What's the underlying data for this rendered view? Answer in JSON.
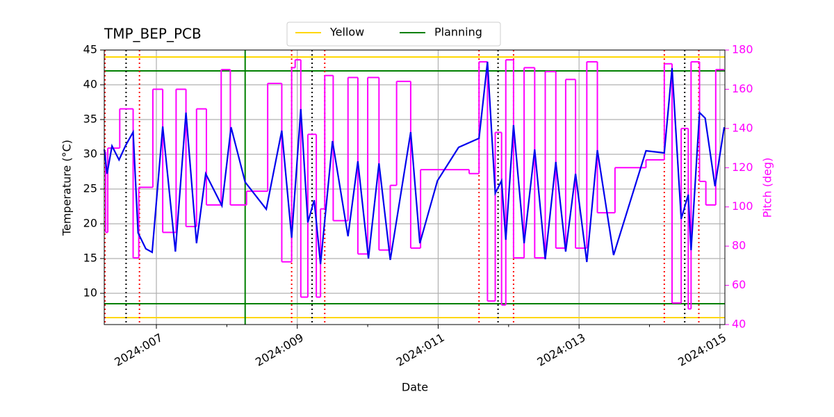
{
  "chart_data": {
    "type": "line",
    "title": "TMP_BEP_PCB",
    "xlabel": "Date",
    "ylabel": "Temperature (°C)",
    "y2label": "Pitch (deg)",
    "y2color": "#ff00ff",
    "xlim": [
      6.26,
      15.07
    ],
    "xticks": [
      {
        "value": 7,
        "label": "2024:007"
      },
      {
        "value": 9,
        "label": "2024:009"
      },
      {
        "value": 11,
        "label": "2024:011"
      },
      {
        "value": 13,
        "label": "2024:013"
      },
      {
        "value": 15,
        "label": "2024:015"
      }
    ],
    "xminorticks": [
      8,
      10,
      12,
      14
    ],
    "ylim": [
      5.5,
      45
    ],
    "yticks": [
      10,
      15,
      20,
      25,
      30,
      35,
      40,
      45
    ],
    "y2lim": [
      40,
      180
    ],
    "y2ticks": [
      40,
      60,
      80,
      100,
      120,
      140,
      160,
      180
    ],
    "grid": true,
    "legend": "upper center",
    "series": [
      {
        "color": "#0000ee",
        "x": [
          6.26,
          6.3,
          6.37,
          6.47,
          6.56,
          6.67,
          6.74,
          6.85,
          6.94,
          7.09,
          7.27,
          7.42,
          7.57,
          7.7,
          7.93,
          8.06,
          8.26,
          8.56,
          8.78,
          8.92,
          9.05,
          9.15,
          9.24,
          9.33,
          9.5,
          9.72,
          9.86,
          10.01,
          10.16,
          10.32,
          10.61,
          10.74,
          10.99,
          11.29,
          11.58,
          11.7,
          11.81,
          11.9,
          11.96,
          12.07,
          12.22,
          12.37,
          12.52,
          12.67,
          12.81,
          12.95,
          13.11,
          13.26,
          13.49,
          13.95,
          14.21,
          14.32,
          14.45,
          14.55,
          14.59,
          14.71,
          14.79,
          14.93,
          15.06
        ],
        "values": [
          30.7,
          27.2,
          31.2,
          29.2,
          31.2,
          33.2,
          18.7,
          16.4,
          15.9,
          34.0,
          16.0,
          36.0,
          17.2,
          27.2,
          22.6,
          33.9,
          26.0,
          22.1,
          33.4,
          18.0,
          36.5,
          20.2,
          23.4,
          14.2,
          31.9,
          18.2,
          29.0,
          15.0,
          28.7,
          14.8,
          33.2,
          17.2,
          26.2,
          31.0,
          32.3,
          43.3,
          24.4,
          26.2,
          17.7,
          34.2,
          17.2,
          30.7,
          14.9,
          28.9,
          16.0,
          27.2,
          14.5,
          30.6,
          15.5,
          30.5,
          30.2,
          42.4,
          20.7,
          24.2,
          16.2,
          36.0,
          35.2,
          25.4,
          33.9
        ]
      },
      {
        "color": "#ff00ff",
        "axis": "y2",
        "step": "post",
        "x": [
          6.26,
          6.28,
          6.31,
          6.48,
          6.67,
          6.75,
          6.95,
          7.09,
          7.28,
          7.42,
          7.57,
          7.71,
          7.92,
          8.05,
          8.28,
          8.58,
          8.78,
          8.92,
          8.97,
          9.05,
          9.15,
          9.27,
          9.33,
          9.39,
          9.51,
          9.72,
          9.86,
          10.0,
          10.16,
          10.32,
          10.41,
          10.61,
          10.75,
          11.44,
          11.58,
          11.7,
          11.81,
          11.9,
          11.96,
          12.07,
          12.22,
          12.37,
          12.52,
          12.67,
          12.81,
          12.95,
          13.11,
          13.26,
          13.51,
          13.95,
          14.21,
          14.32,
          14.45,
          14.55,
          14.59,
          14.71,
          14.8,
          14.94,
          15.06
        ],
        "values": [
          128,
          87,
          130,
          150,
          74,
          110,
          160,
          87,
          160,
          90,
          150,
          101,
          170,
          101,
          108,
          163,
          72,
          171,
          175,
          54,
          137,
          54,
          99,
          167,
          93,
          166,
          76,
          166,
          78,
          111,
          164,
          79,
          119,
          117,
          174,
          52,
          138,
          50,
          175,
          74,
          171,
          74,
          169,
          79,
          165,
          79,
          174,
          97,
          120,
          124,
          173,
          51,
          140,
          48,
          174,
          113,
          101,
          170,
          170
        ]
      }
    ],
    "limit_lines": [
      {
        "name": "Yellow",
        "color": "#ffd700",
        "values": [
          44,
          6.5
        ]
      },
      {
        "name": "Planning",
        "color": "#008000",
        "values": [
          42,
          8.5
        ]
      }
    ],
    "vlines": [
      {
        "color": "#008000",
        "style": "solid",
        "x": [
          8.26
        ]
      },
      {
        "color": "#ff0000",
        "style": "dotted",
        "x": [
          6.27,
          6.76,
          8.92,
          9.39,
          11.58,
          12.07,
          14.21,
          14.7
        ]
      },
      {
        "color": "#000000",
        "style": "dotted",
        "x": [
          6.57,
          9.21,
          11.85,
          14.5
        ]
      }
    ]
  }
}
